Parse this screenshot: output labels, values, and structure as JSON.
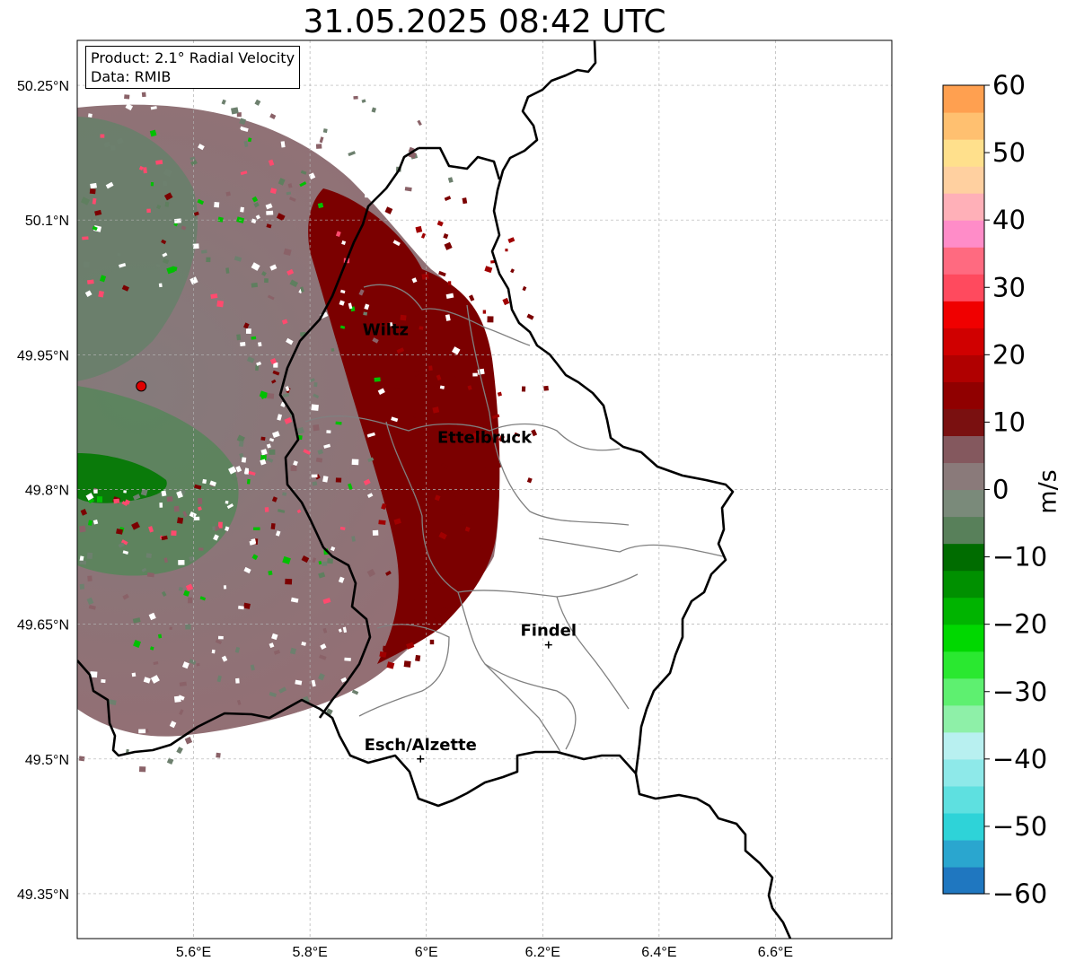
{
  "title": "31.05.2025 08:42 UTC",
  "info": {
    "product": "Product: 2.1° Radial Velocity",
    "data_source": "Data: RMIB"
  },
  "axes": {
    "lon_ticks": [
      "5.6°E",
      "5.8°E",
      "6°E",
      "6.2°E",
      "6.4°E",
      "6.6°E"
    ],
    "lat_ticks": [
      "50.25°N",
      "50.1°N",
      "49.95°N",
      "49.8°N",
      "49.65°N",
      "49.5°N",
      "49.35°N"
    ],
    "lon_values": [
      5.6,
      5.8,
      6.0,
      6.2,
      6.4,
      6.6
    ],
    "lat_values": [
      50.25,
      50.1,
      49.95,
      49.8,
      49.65,
      49.5,
      49.35
    ],
    "lon_range": [
      5.4,
      6.8
    ],
    "lat_range": [
      49.3,
      50.3
    ],
    "grid": true
  },
  "radar_site": {
    "lon": 5.51,
    "lat": 49.915,
    "color": "#e00000"
  },
  "cities": [
    {
      "name": "Wiltz",
      "lon": 5.93,
      "lat": 49.97,
      "marker": false
    },
    {
      "name": "Ettelbruck",
      "lon": 6.1,
      "lat": 49.85,
      "marker": false
    },
    {
      "name": "Findel",
      "lon": 6.21,
      "lat": 49.627,
      "marker": true
    },
    {
      "name": "Esch/Alzette",
      "lon": 5.99,
      "lat": 49.5,
      "marker": true
    }
  ],
  "colorbar": {
    "label": "m/s",
    "min": -60,
    "max": 60,
    "ticks": [
      "60",
      "50",
      "40",
      "30",
      "20",
      "10",
      "0",
      "−10",
      "−20",
      "−30",
      "−40",
      "−50",
      "−60"
    ],
    "tick_values": [
      60,
      50,
      40,
      30,
      20,
      10,
      0,
      -10,
      -20,
      -30,
      -40,
      -50,
      -60
    ],
    "colors": [
      "#1f77c0",
      "#2aa6cf",
      "#2ed3d8",
      "#5ee0e0",
      "#8ee9e9",
      "#b8f0f0",
      "#8ef0a8",
      "#5ef070",
      "#2ae830",
      "#00d800",
      "#00b400",
      "#009000",
      "#006c00",
      "#58805a",
      "#7a8a7a",
      "#8a7a7a",
      "#84585e",
      "#7a1010",
      "#900000",
      "#b00000",
      "#d00000",
      "#f00000",
      "#ff4a5e",
      "#ff6a80",
      "#ff8cc8",
      "#ffb0b8",
      "#ffd0a0",
      "#ffe08c",
      "#ffc070",
      "#ffa050"
    ]
  },
  "colors": {
    "wind_toward": "#006c00",
    "wind_away": "#7a0000",
    "near_zero_green": "#5f7f5f",
    "near_zero_mauve": "#86616a",
    "border": "#000000",
    "district": "#808080"
  }
}
